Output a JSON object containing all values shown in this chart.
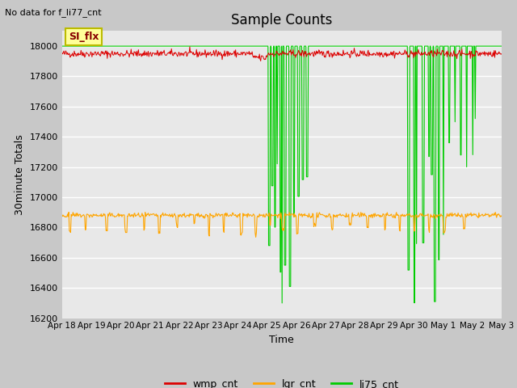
{
  "title": "Sample Counts",
  "top_left_note": "No data for f_li77_cnt",
  "xlabel": "Time",
  "ylabel": "30minute Totals",
  "ylim": [
    16200,
    18100
  ],
  "yticks": [
    16200,
    16400,
    16600,
    16800,
    17000,
    17200,
    17400,
    17600,
    17800,
    18000
  ],
  "xtick_labels": [
    "Apr 18",
    "Apr 19",
    "Apr 20",
    "Apr 21",
    "Apr 22",
    "Apr 23",
    "Apr 24",
    "Apr 25",
    "Apr 26",
    "Apr 27",
    "Apr 28",
    "Apr 29",
    "Apr 30",
    "May 1",
    "May 2",
    "May 3"
  ],
  "fig_bg_color": "#c8c8c8",
  "plot_bg_color": "#e8e8e8",
  "annotation_box": "SI_flx",
  "wmp_base": 17950,
  "wmp_noise": 12,
  "lgr_base": 16880,
  "lgr_noise": 8,
  "li75_base": 18000,
  "legend": [
    {
      "label": "wmp_cnt",
      "color": "#dd0000"
    },
    {
      "label": "lgr_cnt",
      "color": "#ffa500"
    },
    {
      "label": "li75_cnt",
      "color": "#00cc00"
    }
  ]
}
